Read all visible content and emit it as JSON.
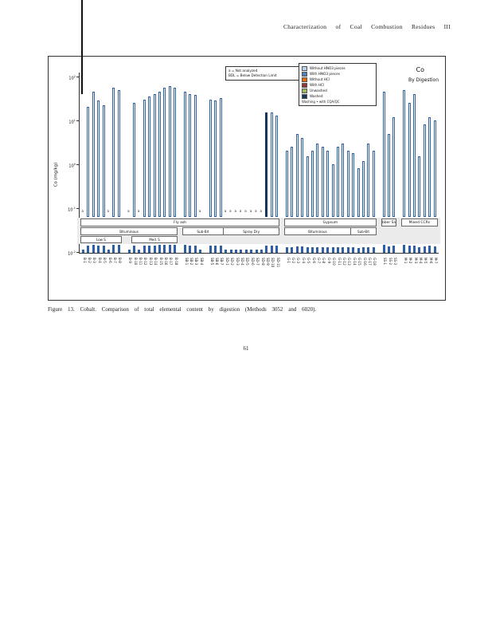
{
  "page": {
    "header": "Characterization of Coal Combustion Residues III",
    "caption": "Figure 13. Cobalt. Comparison of total elemental content by digestion (Methods 3052 and 6020).",
    "page_number": "61"
  },
  "chart": {
    "title": "Co",
    "subtitle": "By Digestion",
    "ylabel": "Co (mg/kg)",
    "note_legend": {
      "line1": "a = Not analyzed",
      "line2": "BDL = Below Detection Limit"
    },
    "legend": {
      "entries": [
        {
          "color": "#b8d3ee",
          "label": "Without HNO3 pieces"
        },
        {
          "color": "#4f81bd",
          "label": "With HNO3 pieces"
        },
        {
          "color": "#e46c0a",
          "label": "Without HCl"
        },
        {
          "color": "#943634",
          "label": "With HCl"
        },
        {
          "color": "#9bbb59",
          "label": "Unwashed"
        },
        {
          "color": "#16365c",
          "label": "Washed"
        }
      ],
      "note": "Washing • with CQA/QC"
    }
  },
  "chart_data": {
    "type": "bar",
    "y_scale": "log",
    "ylim": [
      0.01,
      100
    ],
    "y_tick_exponents": [
      2,
      1,
      0,
      -1,
      -2
    ],
    "bar_color": "#2e5fa3",
    "filled_color": "#16365c",
    "slots": [
      {
        "t": "a",
        "l": "B-1"
      },
      {
        "t": "bar",
        "v": 20,
        "l": "B-2"
      },
      {
        "t": "bar",
        "v": 45,
        "l": "B-3"
      },
      {
        "t": "bar",
        "v": 28,
        "l": "B-4"
      },
      {
        "t": "bar",
        "v": 22,
        "l": "B-5"
      },
      {
        "t": "a",
        "l": "B-6"
      },
      {
        "t": "bar",
        "v": 55,
        "l": "B-7"
      },
      {
        "t": "bar",
        "v": 50,
        "l": "B-8"
      },
      {
        "t": "gap"
      },
      {
        "t": "a",
        "l": "B-9"
      },
      {
        "t": "bar",
        "v": 25,
        "l": "B-10"
      },
      {
        "t": "a",
        "l": "B-11"
      },
      {
        "t": "bar",
        "v": 30,
        "l": "B-12"
      },
      {
        "t": "bar",
        "v": 35,
        "l": "B-13"
      },
      {
        "t": "bar",
        "v": 40,
        "l": "B-14"
      },
      {
        "t": "bar",
        "v": 45,
        "l": "B-15"
      },
      {
        "t": "bar",
        "v": 55,
        "l": "B-16"
      },
      {
        "t": "bar",
        "v": 60,
        "l": "B-17"
      },
      {
        "t": "bar",
        "v": 55,
        "l": "B-18"
      },
      {
        "t": "gap"
      },
      {
        "t": "bar",
        "v": 45,
        "l": "SB-1"
      },
      {
        "t": "bar",
        "v": 40,
        "l": "SB-2"
      },
      {
        "t": "bar",
        "v": 38,
        "l": "SB-3"
      },
      {
        "t": "a",
        "l": "SB-4"
      },
      {
        "t": "gap"
      },
      {
        "t": "bar",
        "v": 30,
        "l": "SB-5"
      },
      {
        "t": "bar",
        "v": 28,
        "l": "SB-6"
      },
      {
        "t": "bar",
        "v": 32,
        "l": "SB-7"
      },
      {
        "t": "a",
        "l": "SD-1"
      },
      {
        "t": "a",
        "l": "SD-2"
      },
      {
        "t": "a",
        "l": "SD-3"
      },
      {
        "t": "a",
        "l": "SD-4"
      },
      {
        "t": "a",
        "l": "SD-5"
      },
      {
        "t": "a",
        "l": "SD-6"
      },
      {
        "t": "a",
        "l": "SD-7"
      },
      {
        "t": "a",
        "l": "SD-8"
      },
      {
        "t": "bar",
        "v": 15,
        "f": true,
        "l": "SD-9"
      },
      {
        "t": "bar",
        "v": 15,
        "l": "SD-10"
      },
      {
        "t": "bar",
        "v": 13,
        "l": "SD-11"
      },
      {
        "t": "gap"
      },
      {
        "t": "bar",
        "v": 2,
        "l": "G-1"
      },
      {
        "t": "bar",
        "v": 2.5,
        "l": "G-2"
      },
      {
        "t": "bar",
        "v": 5,
        "l": "G-3"
      },
      {
        "t": "bar",
        "v": 4,
        "l": "G-4"
      },
      {
        "t": "bar",
        "v": 1.5,
        "l": "G-5"
      },
      {
        "t": "bar",
        "v": 2,
        "l": "G-6"
      },
      {
        "t": "bar",
        "v": 3,
        "l": "G-7"
      },
      {
        "t": "bar",
        "v": 2.5,
        "l": "G-8"
      },
      {
        "t": "bar",
        "v": 2,
        "l": "G-9"
      },
      {
        "t": "bar",
        "v": 1,
        "l": "G-10"
      },
      {
        "t": "bar",
        "v": 2.5,
        "l": "G-11"
      },
      {
        "t": "bar",
        "v": 3,
        "l": "G-12"
      },
      {
        "t": "bar",
        "v": 2,
        "l": "G-13"
      },
      {
        "t": "bar",
        "v": 1.8,
        "l": "G-14"
      },
      {
        "t": "bar",
        "v": 0.8,
        "l": "G-15"
      },
      {
        "t": "bar",
        "v": 1.2,
        "l": "G-16"
      },
      {
        "t": "bar",
        "v": 3,
        "l": "G-17"
      },
      {
        "t": "bar",
        "v": 2,
        "l": "G-18"
      },
      {
        "t": "gap"
      },
      {
        "t": "bar",
        "v": 45,
        "l": "SS-1"
      },
      {
        "t": "bar",
        "v": 5,
        "l": "SS-2"
      },
      {
        "t": "bar",
        "v": 12,
        "l": "SS-3"
      },
      {
        "t": "gap"
      },
      {
        "t": "bar",
        "v": 50,
        "l": "M-1"
      },
      {
        "t": "bar",
        "v": 25,
        "l": "M-2"
      },
      {
        "t": "bar",
        "v": 40,
        "l": "M-3"
      },
      {
        "t": "bar",
        "v": 1.5,
        "l": "M-4"
      },
      {
        "t": "bar",
        "v": 8,
        "l": "M-5"
      },
      {
        "t": "bar",
        "v": 12,
        "l": "M-6"
      },
      {
        "t": "bar",
        "v": 10,
        "l": "M-7"
      }
    ],
    "groups_row1": [
      {
        "label": "Fly ash",
        "start": 0,
        "end": 38
      },
      {
        "label": "Gypsum",
        "start": 40,
        "end": 57
      },
      {
        "label": "Scrubber Sludge",
        "start": 59,
        "end": 61
      },
      {
        "label": "Mixed CCRs",
        "start": 63,
        "end": 69
      }
    ],
    "groups_row2": [
      {
        "label": "Bituminous",
        "start": 0,
        "end": 18
      },
      {
        "label": "Sub-Bit",
        "start": 20,
        "end": 27
      },
      {
        "label": "Spray Dry",
        "start": 28,
        "end": 38
      },
      {
        "label": "Bituminous",
        "start": 40,
        "end": 52
      },
      {
        "label": "Sub-Bit",
        "start": 53,
        "end": 57
      }
    ],
    "groups_row3": [
      {
        "label": "Low S",
        "start": 0,
        "end": 7
      },
      {
        "label": "Med. S",
        "start": 10,
        "end": 18
      }
    ]
  }
}
